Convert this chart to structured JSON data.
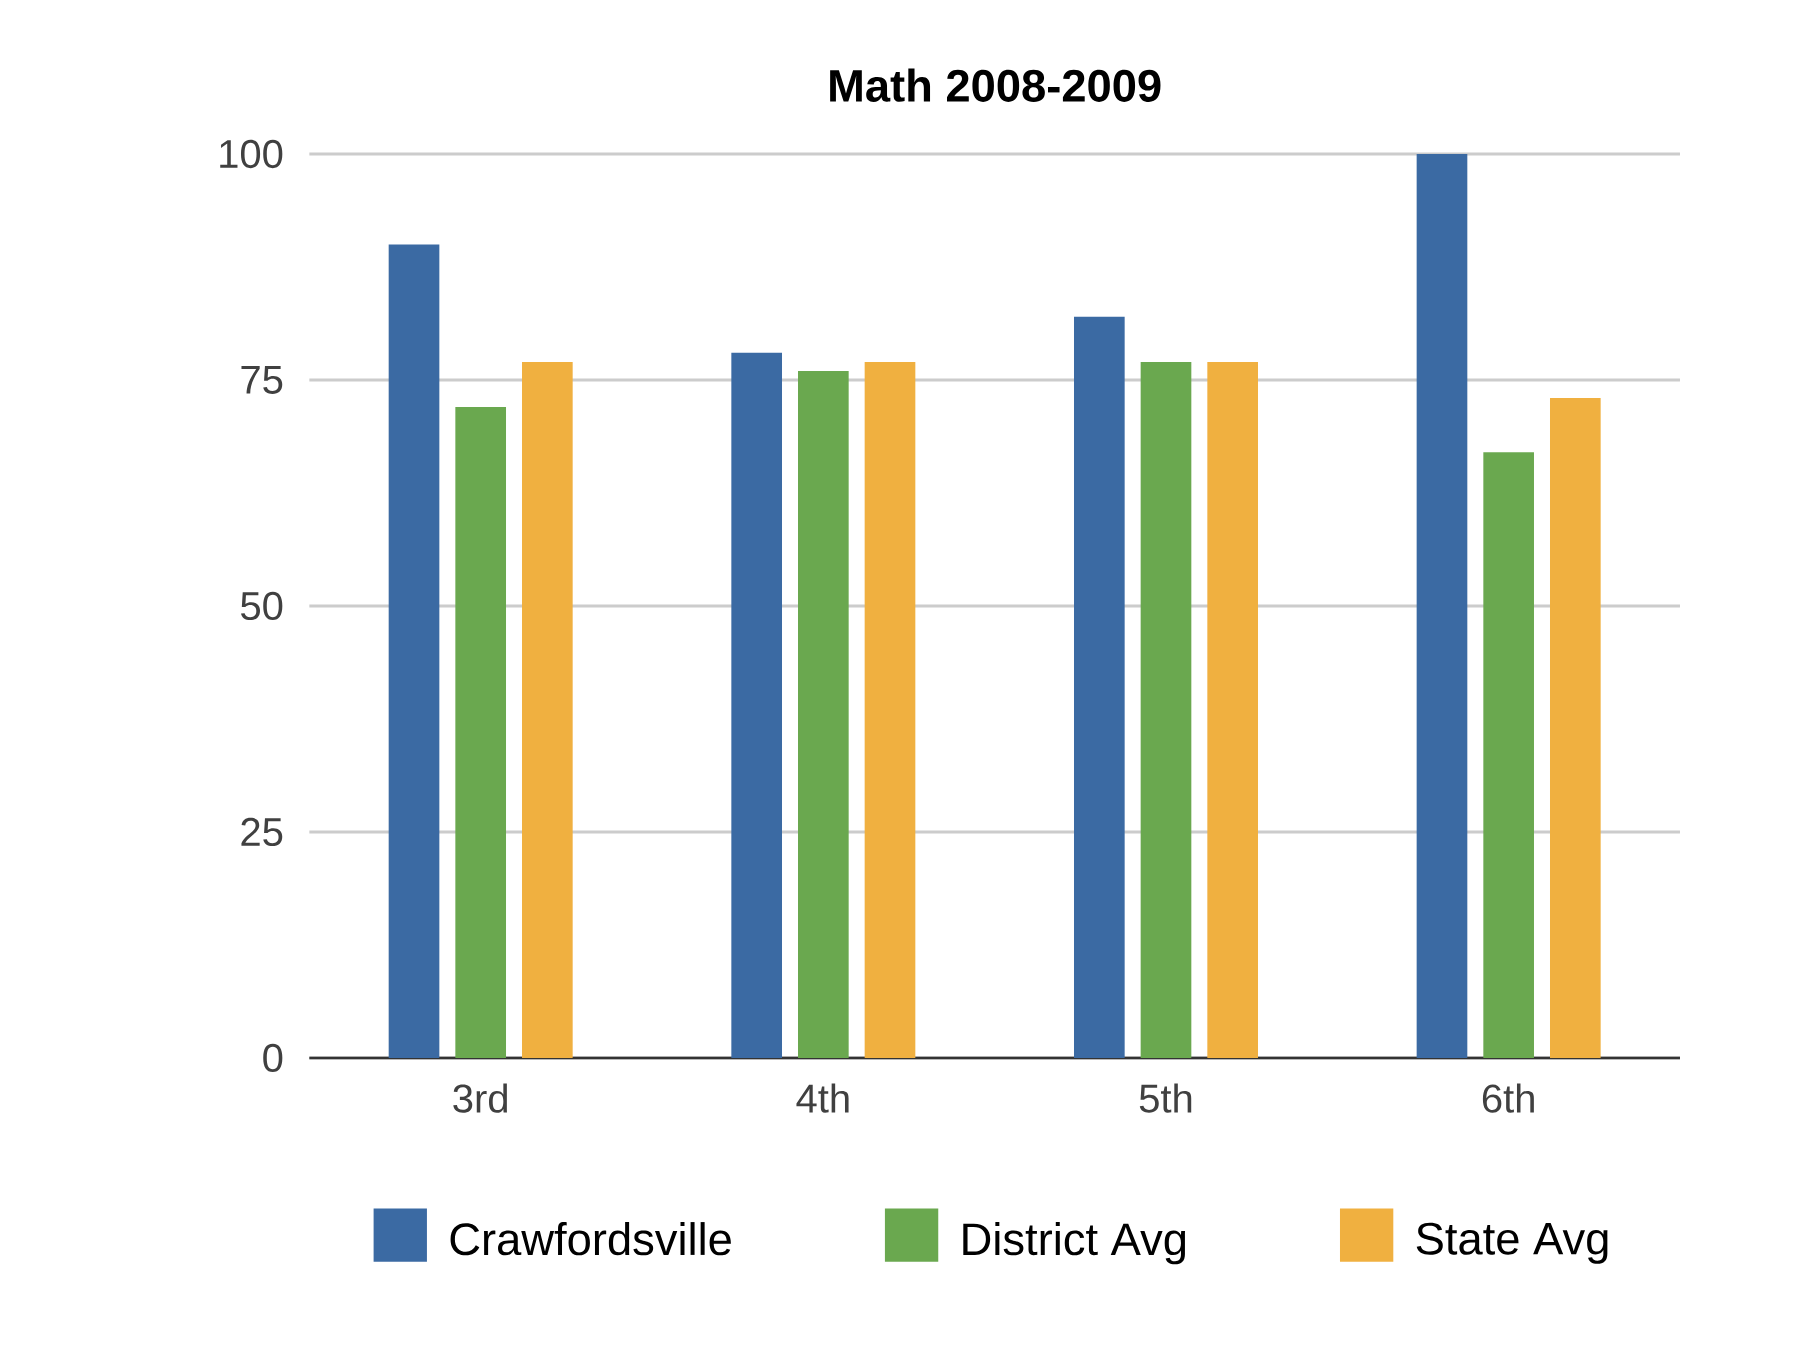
{
  "chart_data": {
    "type": "bar",
    "title": "Math 2008-2009",
    "categories": [
      "3rd",
      "4th",
      "5th",
      "6th"
    ],
    "series": [
      {
        "name": "Crawfordsville",
        "color": "#3b6aa3",
        "values": [
          90,
          78,
          82,
          100
        ]
      },
      {
        "name": "District Avg",
        "color": "#6aa84f",
        "values": [
          72,
          76,
          77,
          67
        ]
      },
      {
        "name": "State Avg",
        "color": "#f0b040",
        "values": [
          77,
          77,
          77,
          73
        ]
      }
    ],
    "ylim": [
      0,
      100
    ],
    "yticks": [
      0,
      25,
      50,
      75,
      100
    ],
    "grid": "y",
    "legend": "bottom"
  }
}
